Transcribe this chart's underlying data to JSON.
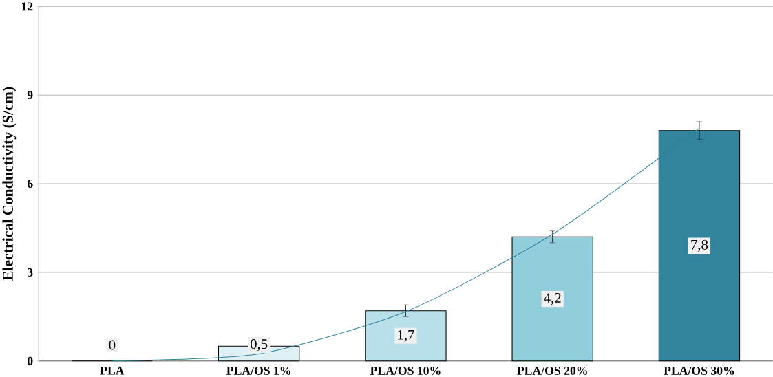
{
  "chart_data": {
    "type": "bar",
    "ylabel": "Electrical Conductivity (S/cm)",
    "categories": [
      "PLA",
      "PLA/OS 1%",
      "PLA/OS 10%",
      "PLA/OS 20%",
      "PLA/OS 30%"
    ],
    "series": [
      {
        "colors": [
          "#dff0f5",
          "#dff0f5",
          "#b9e0ea",
          "#92cddc",
          "#31849b"
        ],
        "values": [
          0,
          0.5,
          1.7,
          4.2,
          7.8
        ],
        "errors": [
          null,
          null,
          0.2,
          0.2,
          0.3
        ],
        "value_labels": [
          "0",
          "0,5",
          "1,7",
          "4,2",
          "7,8"
        ]
      },
      {
        "type": "line",
        "color": "#31849b",
        "values": [
          0,
          0.24,
          1.67,
          4.29,
          7.88
        ]
      }
    ],
    "ylim": [
      0,
      12
    ],
    "yticks": [
      0,
      3,
      6,
      9,
      12
    ],
    "grid": "y"
  }
}
